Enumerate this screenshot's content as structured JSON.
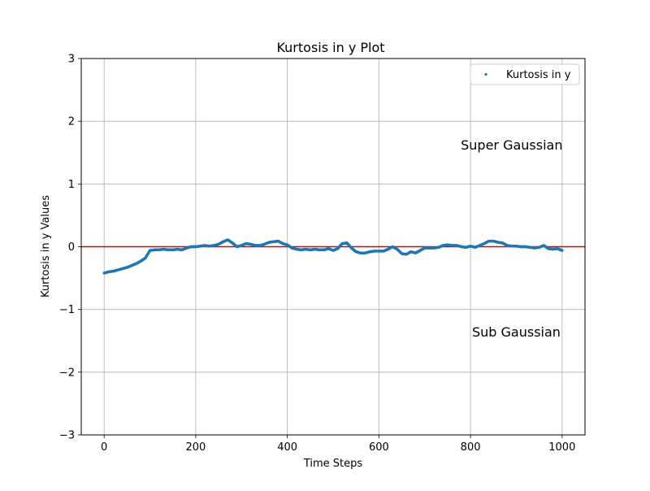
{
  "chart_data": {
    "type": "scatter",
    "title": "Kurtosis in y Plot",
    "xlabel": "Time Steps",
    "ylabel": "Kurtosis in y Values",
    "xlim": [
      -50,
      1050
    ],
    "ylim": [
      -3,
      3
    ],
    "xticks": [
      0,
      200,
      400,
      600,
      800,
      1000
    ],
    "yticks": [
      -3,
      -2,
      -1,
      0,
      1,
      2,
      3
    ],
    "xtick_labels": [
      "0",
      "200",
      "400",
      "600",
      "800",
      "1000"
    ],
    "ytick_labels": [
      "−3",
      "−2",
      "−1",
      "0",
      "1",
      "2",
      "3"
    ],
    "grid": true,
    "legend": {
      "position": "top-right",
      "entries": [
        "Kurtosis in y"
      ]
    },
    "annotations": [
      {
        "text": "Super Gaussian",
        "x": 890,
        "y": 1.55
      },
      {
        "text": "Sub Gaussian",
        "x": 900,
        "y": -1.43
      }
    ],
    "reference_line": {
      "y": 0,
      "color": "#e00000"
    },
    "series": [
      {
        "name": "Kurtosis in y",
        "color": "#1f77b4",
        "x": [
          0,
          10,
          20,
          30,
          40,
          50,
          60,
          70,
          80,
          90,
          100,
          110,
          120,
          130,
          140,
          150,
          160,
          170,
          180,
          190,
          200,
          210,
          220,
          230,
          240,
          250,
          260,
          270,
          280,
          290,
          300,
          310,
          320,
          330,
          340,
          350,
          360,
          370,
          380,
          390,
          400,
          410,
          420,
          430,
          440,
          450,
          460,
          470,
          480,
          490,
          500,
          510,
          520,
          530,
          540,
          550,
          560,
          570,
          580,
          590,
          600,
          610,
          620,
          630,
          640,
          650,
          660,
          670,
          680,
          690,
          700,
          710,
          720,
          730,
          740,
          750,
          760,
          770,
          780,
          790,
          800,
          810,
          820,
          830,
          840,
          850,
          860,
          870,
          880,
          890,
          900,
          910,
          920,
          930,
          940,
          950,
          960,
          970,
          980,
          990,
          1000
        ],
        "y": [
          -0.42,
          -0.4,
          -0.39,
          -0.37,
          -0.35,
          -0.33,
          -0.3,
          -0.27,
          -0.23,
          -0.18,
          -0.06,
          -0.05,
          -0.05,
          -0.04,
          -0.05,
          -0.05,
          -0.04,
          -0.05,
          -0.02,
          0.0,
          0.0,
          0.01,
          0.02,
          0.01,
          0.02,
          0.04,
          0.08,
          0.11,
          0.06,
          0.0,
          0.02,
          0.05,
          0.04,
          0.02,
          0.02,
          0.04,
          0.07,
          0.08,
          0.09,
          0.05,
          0.03,
          -0.02,
          -0.04,
          -0.05,
          -0.04,
          -0.05,
          -0.04,
          -0.05,
          -0.05,
          -0.03,
          -0.06,
          -0.03,
          0.05,
          0.06,
          -0.02,
          -0.08,
          -0.1,
          -0.1,
          -0.08,
          -0.07,
          -0.07,
          -0.07,
          -0.04,
          0.0,
          -0.04,
          -0.11,
          -0.12,
          -0.08,
          -0.1,
          -0.06,
          -0.02,
          -0.02,
          -0.02,
          -0.01,
          0.02,
          0.03,
          0.02,
          0.02,
          0.0,
          -0.01,
          0.01,
          -0.01,
          0.02,
          0.05,
          0.09,
          0.09,
          0.07,
          0.06,
          0.02,
          0.01,
          0.01,
          0.0,
          0.0,
          -0.01,
          -0.02,
          -0.01,
          0.02,
          -0.03,
          -0.04,
          -0.03,
          -0.06
        ]
      }
    ]
  }
}
